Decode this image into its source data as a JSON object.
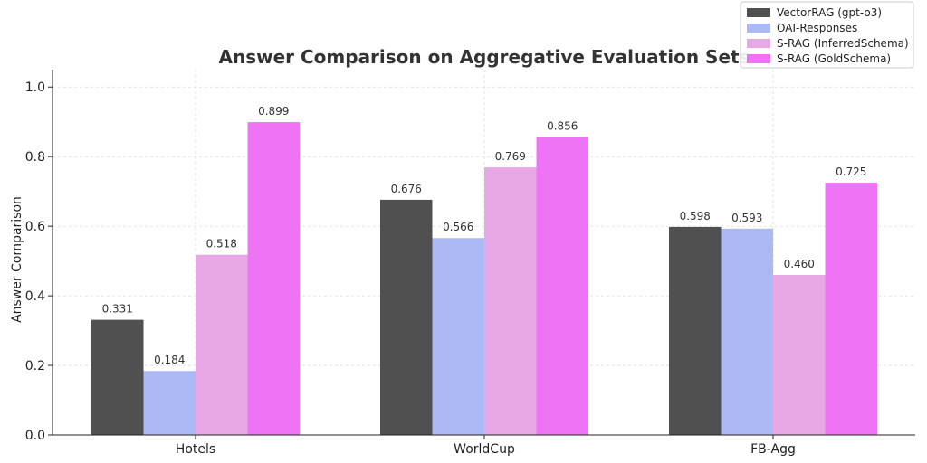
{
  "chart_data": {
    "type": "bar",
    "title": "Answer Comparison on Aggregative Evaluation Sets",
    "xlabel": "",
    "ylabel": "Answer Comparison",
    "categories": [
      "Hotels",
      "WorldCup",
      "FB-Agg"
    ],
    "ylim": [
      0,
      1.05
    ],
    "yticks": [
      "0.0",
      "0.2",
      "0.4",
      "0.6",
      "0.8",
      "1.0"
    ],
    "ytick_values": [
      0.0,
      0.2,
      0.4,
      0.6,
      0.8,
      1.0
    ],
    "grid": true,
    "legend_position": "top-right",
    "series": [
      {
        "name": "VectorRAG (gpt-o3)",
        "color": "#505050",
        "values": [
          0.331,
          0.676,
          0.598
        ],
        "labels": [
          "0.331",
          "0.676",
          "0.598"
        ]
      },
      {
        "name": "OAI-Responses",
        "color": "#adb9f5",
        "values": [
          0.184,
          0.566,
          0.593
        ],
        "labels": [
          "0.184",
          "0.566",
          "0.593"
        ]
      },
      {
        "name": "S-RAG (InferredSchema)",
        "color": "#e8a8e6",
        "values": [
          0.518,
          0.769,
          0.46
        ],
        "labels": [
          "0.518",
          "0.769",
          "0.460"
        ]
      },
      {
        "name": "S-RAG (GoldSchema)",
        "color": "#ef74f5",
        "values": [
          0.899,
          0.856,
          0.725
        ],
        "labels": [
          "0.899",
          "0.856",
          "0.725"
        ]
      }
    ]
  }
}
